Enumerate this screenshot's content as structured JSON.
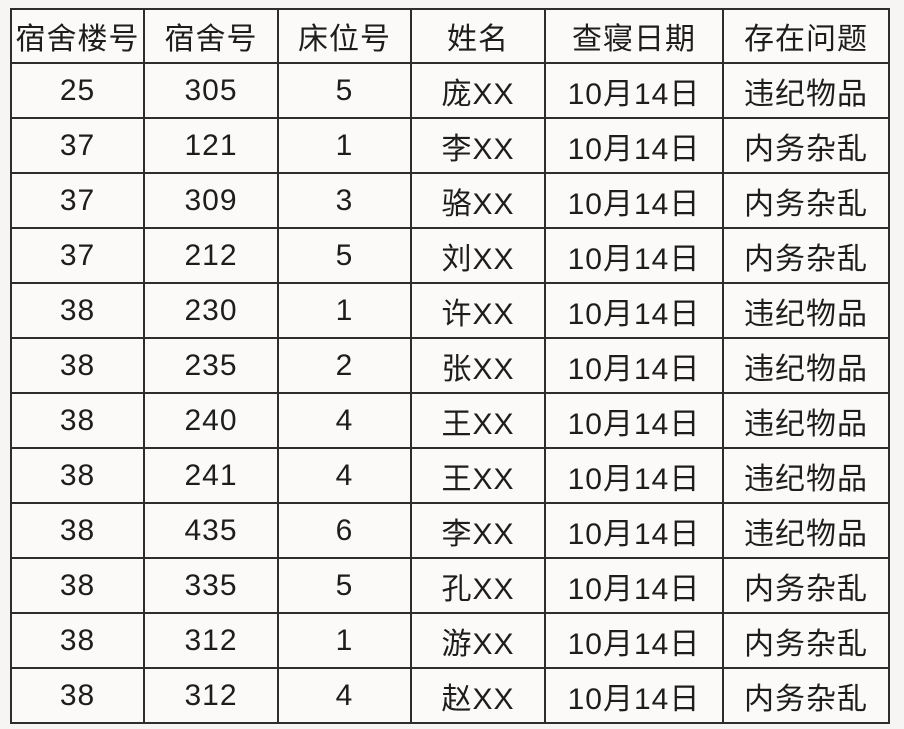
{
  "table": {
    "columns": [
      {
        "key": "building",
        "label": "宿舍楼号"
      },
      {
        "key": "room",
        "label": "宿舍号"
      },
      {
        "key": "bed",
        "label": "床位号"
      },
      {
        "key": "name",
        "label": "姓名"
      },
      {
        "key": "date",
        "label": "查寝日期"
      },
      {
        "key": "issue",
        "label": "存在问题"
      }
    ],
    "rows": [
      [
        "25",
        "305",
        "5",
        "庞XX",
        "10月14日",
        "违纪物品"
      ],
      [
        "37",
        "121",
        "1",
        "李XX",
        "10月14日",
        "内务杂乱"
      ],
      [
        "37",
        "309",
        "3",
        "骆XX",
        "10月14日",
        "内务杂乱"
      ],
      [
        "37",
        "212",
        "5",
        "刘XX",
        "10月14日",
        "内务杂乱"
      ],
      [
        "38",
        "230",
        "1",
        "许XX",
        "10月14日",
        "违纪物品"
      ],
      [
        "38",
        "235",
        "2",
        "张XX",
        "10月14日",
        "违纪物品"
      ],
      [
        "38",
        "240",
        "4",
        "王XX",
        "10月14日",
        "违纪物品"
      ],
      [
        "38",
        "241",
        "4",
        "王XX",
        "10月14日",
        "违纪物品"
      ],
      [
        "38",
        "435",
        "6",
        "李XX",
        "10月14日",
        "违纪物品"
      ],
      [
        "38",
        "335",
        "5",
        "孔XX",
        "10月14日",
        "内务杂乱"
      ],
      [
        "38",
        "312",
        "1",
        "游XX",
        "10月14日",
        "内务杂乱"
      ],
      [
        "38",
        "312",
        "4",
        "赵XX",
        "10月14日",
        "内务杂乱"
      ]
    ]
  },
  "chart_data": {
    "type": "table",
    "columns": [
      "宿舍楼号",
      "宿舍号",
      "床位号",
      "姓名",
      "查寝日期",
      "存在问题"
    ],
    "rows": [
      [
        "25",
        "305",
        "5",
        "庞XX",
        "10月14日",
        "违纪物品"
      ],
      [
        "37",
        "121",
        "1",
        "李XX",
        "10月14日",
        "内务杂乱"
      ],
      [
        "37",
        "309",
        "3",
        "骆XX",
        "10月14日",
        "内务杂乱"
      ],
      [
        "37",
        "212",
        "5",
        "刘XX",
        "10月14日",
        "内务杂乱"
      ],
      [
        "38",
        "230",
        "1",
        "许XX",
        "10月14日",
        "违纪物品"
      ],
      [
        "38",
        "235",
        "2",
        "张XX",
        "10月14日",
        "违纪物品"
      ],
      [
        "38",
        "240",
        "4",
        "王XX",
        "10月14日",
        "违纪物品"
      ],
      [
        "38",
        "241",
        "4",
        "王XX",
        "10月14日",
        "违纪物品"
      ],
      [
        "38",
        "435",
        "6",
        "李XX",
        "10月14日",
        "违纪物品"
      ],
      [
        "38",
        "335",
        "5",
        "孔XX",
        "10月14日",
        "内务杂乱"
      ],
      [
        "38",
        "312",
        "1",
        "游XX",
        "10月14日",
        "内务杂乱"
      ],
      [
        "38",
        "312",
        "4",
        "赵XX",
        "10月14日",
        "内务杂乱"
      ]
    ]
  },
  "colors": {
    "page_background": "#f6f5f3",
    "cell_background": "#fbfaf8",
    "border": "#2e2d2b",
    "text": "#1e1d1b"
  }
}
